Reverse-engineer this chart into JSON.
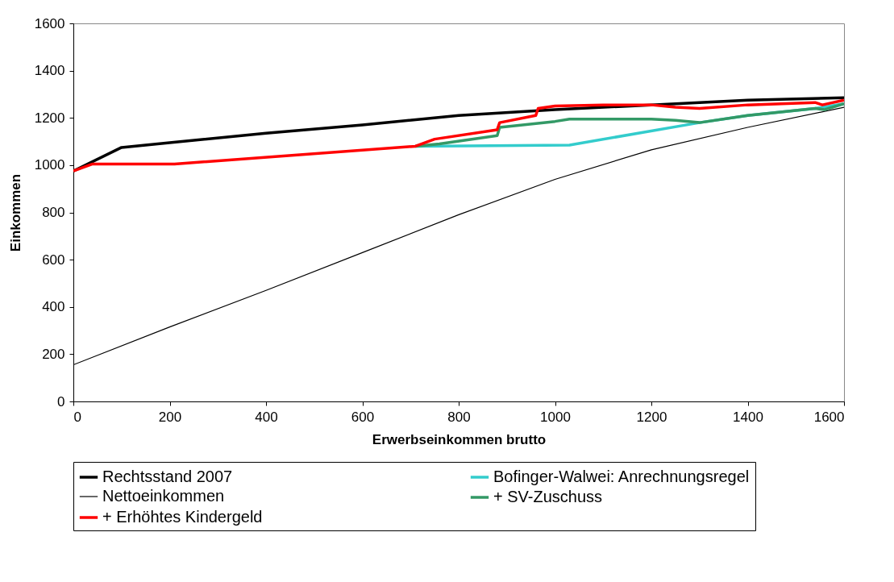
{
  "chart_data": {
    "type": "line",
    "xlabel": "Erwerbseinkommen brutto",
    "ylabel": "Einkommen",
    "xlim": [
      0,
      1600
    ],
    "xticks": [
      0,
      200,
      400,
      600,
      800,
      1000,
      1200,
      1400,
      1600
    ],
    "ylim": [
      0,
      1600
    ],
    "yticks": [
      0,
      200,
      400,
      600,
      800,
      1000,
      1200,
      1400,
      1600
    ],
    "grid": false,
    "legend": "bottom",
    "series": [
      {
        "name": "Rechtsstand 2007",
        "color": "#000000",
        "x": [
          0,
          100,
          200,
          400,
          600,
          800,
          1000,
          1200,
          1400,
          1600
        ],
        "values": [
          975,
          1075,
          1095,
          1135,
          1170,
          1210,
          1235,
          1255,
          1275,
          1285
        ]
      },
      {
        "name": "Bofinger-Walwei: Anrechnungsregel",
        "color": "#33cccc",
        "x": [
          710,
          1030,
          1300,
          1400,
          1540,
          1600
        ],
        "values": [
          1080,
          1085,
          1180,
          1210,
          1240,
          1260
        ]
      },
      {
        "name": "Nettoeinkommen",
        "color": "#000000",
        "x": [
          0,
          200,
          400,
          600,
          800,
          1000,
          1200,
          1400,
          1600
        ],
        "values": [
          155,
          315,
          470,
          630,
          790,
          940,
          1065,
          1160,
          1245
        ]
      },
      {
        "name": "+ SV-Zuschuss",
        "color": "#339966",
        "x": [
          710,
          760,
          880,
          885,
          1000,
          1030,
          1200,
          1250,
          1300,
          1400,
          1540,
          1560,
          1600
        ],
        "values": [
          1080,
          1090,
          1125,
          1160,
          1185,
          1195,
          1195,
          1190,
          1180,
          1210,
          1240,
          1235,
          1260
        ]
      },
      {
        "name": "+ Erhöhtes Kindergeld",
        "color": "#ff0000",
        "x": [
          0,
          40,
          210,
          710,
          750,
          880,
          885,
          960,
          965,
          1000,
          1100,
          1200,
          1250,
          1300,
          1400,
          1540,
          1555,
          1600
        ],
        "values": [
          975,
          1005,
          1005,
          1080,
          1110,
          1150,
          1180,
          1210,
          1240,
          1250,
          1255,
          1255,
          1245,
          1240,
          1255,
          1265,
          1255,
          1275
        ]
      }
    ]
  }
}
